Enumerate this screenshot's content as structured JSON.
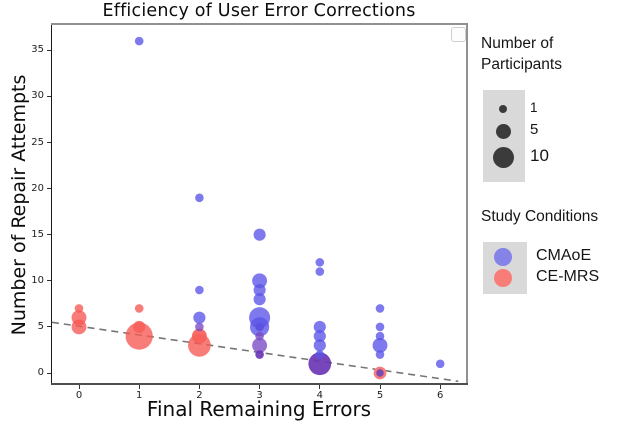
{
  "chart_data": {
    "type": "scatter",
    "title": "Efficiency of User Error Corrections",
    "xlabel": "Final Remaining Errors",
    "ylabel": "Number of Repair Attempts",
    "xticks": [
      "0",
      "1",
      "2",
      "3",
      "4",
      "5",
      "6"
    ],
    "yticks": [
      "0",
      "5",
      "10",
      "15",
      "20",
      "25",
      "30",
      "35"
    ],
    "xlim": [
      -0.45,
      6.43
    ],
    "ylim": [
      -1.1,
      37.9
    ],
    "grid": false,
    "bubble_size_meaning": "Number of Participants",
    "series": [
      {
        "name": "CMAoE",
        "color": "#5a55e8",
        "points": [
          [
            1,
            36,
            1
          ],
          [
            2,
            19,
            1
          ],
          [
            2,
            9,
            1
          ],
          [
            2,
            6,
            2
          ],
          [
            3,
            15,
            2
          ],
          [
            3,
            10,
            3
          ],
          [
            3,
            9,
            2
          ],
          [
            3,
            8,
            2
          ],
          [
            3,
            6,
            6
          ],
          [
            3,
            5,
            5
          ],
          [
            4,
            12,
            1
          ],
          [
            4,
            11,
            1
          ],
          [
            4,
            5,
            2
          ],
          [
            4,
            4,
            2
          ],
          [
            4,
            3,
            2
          ],
          [
            4,
            2,
            1
          ],
          [
            5,
            7,
            1
          ],
          [
            5,
            5,
            1
          ],
          [
            5,
            4,
            1
          ],
          [
            5,
            3,
            3
          ],
          [
            5,
            2,
            1
          ],
          [
            6,
            1,
            1
          ]
        ]
      },
      {
        "name": "CE-MRS",
        "color": "#f65852",
        "points": [
          [
            0,
            7,
            1
          ],
          [
            0,
            6,
            3
          ],
          [
            0,
            5,
            3
          ],
          [
            1,
            7,
            1
          ],
          [
            1,
            5,
            2,
            "#f75f5b"
          ],
          [
            1,
            4,
            10
          ],
          [
            2,
            4,
            3,
            "#f75f5b"
          ],
          [
            2,
            3,
            7
          ]
        ]
      },
      {
        "name": "CMAoE + CE-MRS overlap",
        "color": "#7a49c4",
        "points": [
          [
            2,
            5,
            1
          ],
          [
            3,
            5,
            1,
            "#5b50e0"
          ],
          [
            3,
            4,
            1
          ],
          [
            3,
            3,
            3
          ],
          [
            3,
            2,
            1,
            "#6a36b4"
          ],
          [
            4,
            1,
            7,
            "#6a36b4"
          ],
          [
            5,
            0,
            2,
            "#6d3cae",
            "ring"
          ]
        ]
      }
    ],
    "trendline": {
      "x1": -0.45,
      "y1": 5.5,
      "x2": 6.3,
      "y2": -0.9,
      "style": "dashed",
      "color": "#555555"
    }
  },
  "legend_size": {
    "title": "Number of Participants",
    "items": [
      {
        "n": 1,
        "label": "1"
      },
      {
        "n": 5,
        "label": "5"
      },
      {
        "n": 10,
        "label": "10"
      }
    ],
    "swatch_color": "#3b3b3b",
    "box_color": "#d9d9d9"
  },
  "legend_conditions": {
    "title": "Study Conditions",
    "items": [
      {
        "label": "CMAoE",
        "color": "#8583e8"
      },
      {
        "label": "CE-MRS",
        "color": "#f87d78"
      }
    ],
    "box_color": "#d9d9d9"
  },
  "colors": {
    "cmaoe_rendered": "#7e7aed",
    "cemrs_rendered": "#f87d78",
    "overlap_purple": "#7a49c4",
    "trend": "#555555",
    "legend_box": "#d9d9d9"
  }
}
